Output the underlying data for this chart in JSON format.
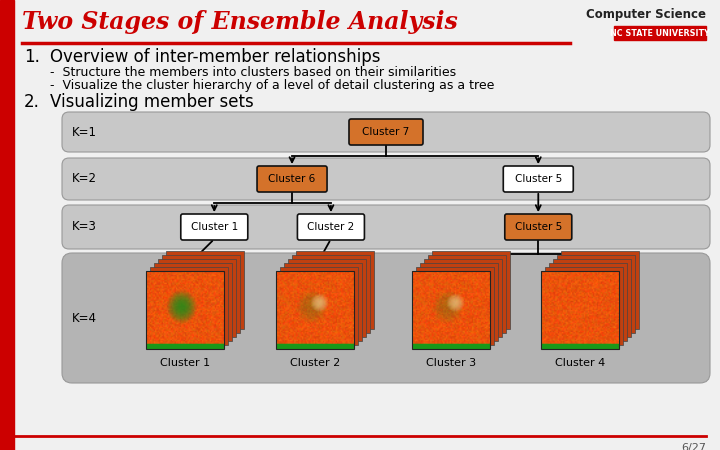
{
  "bg_color": "#f0f0f0",
  "title": "Two Stages of Ensemble Analysis",
  "title_color": "#cc0000",
  "logo_text1": "Computer Science",
  "logo_text2": "NC STATE UNIVERSITY",
  "logo_bg": "#cc0000",
  "item1_num": "1.",
  "item1_text": "Overview of inter-member relationships",
  "bullet1": "-  Structure the members into clusters based on their similarities",
  "bullet2": "-  Visualize the cluster hierarchy of a level of detail clustering as a tree",
  "item2_num": "2.",
  "item2_text": "Visualizing member sets",
  "page_num": "6/27",
  "k_labels": [
    "K=1",
    "K=2",
    "K=3",
    "K=4"
  ],
  "cluster_box_color_orange": "#d4722a",
  "cluster_box_color_white": "#ffffff",
  "cluster_row1_label": "Cluster 7",
  "cluster_row2_labels": [
    "Cluster 6",
    "Cluster 5"
  ],
  "cluster_row3_labels": [
    "Cluster 1",
    "Cluster 2",
    "Cluster 5"
  ],
  "cluster_row3_orange": [
    false,
    false,
    true
  ],
  "cluster_row2_orange": [
    true,
    false
  ],
  "cluster_row4_labels": [
    "Cluster 1",
    "Cluster 2",
    "Cluster 3",
    "Cluster 4"
  ],
  "panel_bg": "#c8c8c8",
  "panel_bg_k4": "#b8b8b8",
  "left_bar_color": "#cc0000",
  "bottom_line_color": "#cc0000"
}
